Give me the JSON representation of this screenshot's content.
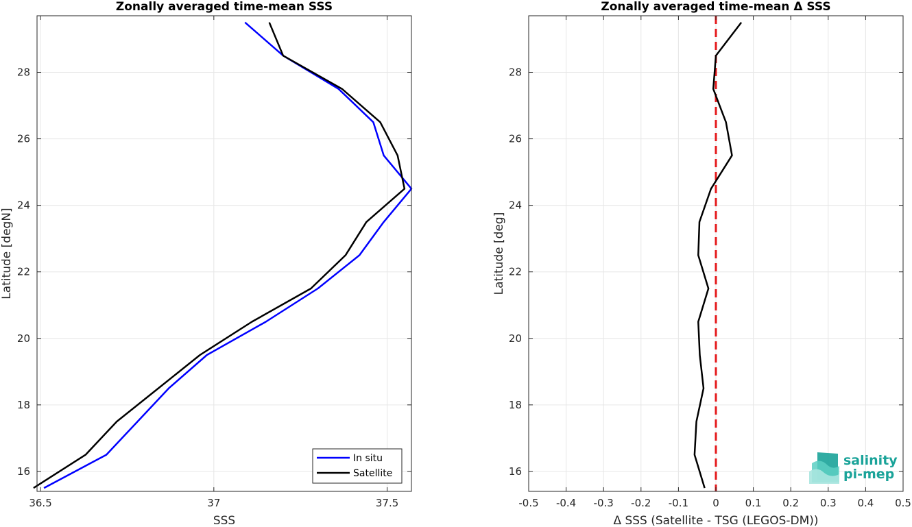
{
  "chart_data": [
    {
      "type": "line",
      "title": "Zonally averaged time-mean SSS",
      "xlabel": "SSS",
      "ylabel": "Latitude [degN]",
      "xlim": [
        36.49,
        37.57
      ],
      "ylim": [
        15.4,
        29.7
      ],
      "xticks": [
        36.5,
        37,
        37.5
      ],
      "xtick_labels": [
        "36.5",
        "37",
        "37.5"
      ],
      "yticks": [
        16,
        18,
        20,
        22,
        24,
        26,
        28
      ],
      "grid": true,
      "legend_position": "bottom-right",
      "y": [
        15.5,
        16.5,
        17.5,
        18.5,
        19.5,
        20.5,
        21.5,
        22.5,
        23.5,
        24.5,
        25.5,
        26.5,
        27.5,
        28.5,
        29.5
      ],
      "series": [
        {
          "name": "In situ",
          "color": "#0000ff",
          "values": [
            36.51,
            36.69,
            36.78,
            36.87,
            36.98,
            37.15,
            37.3,
            37.42,
            37.49,
            37.57,
            37.49,
            37.46,
            37.36,
            37.2,
            37.09
          ]
        },
        {
          "name": "Satellite",
          "color": "#000000",
          "values": [
            36.48,
            36.63,
            36.72,
            36.84,
            36.96,
            37.11,
            37.28,
            37.38,
            37.44,
            37.55,
            37.53,
            37.48,
            37.37,
            37.2,
            37.16
          ]
        }
      ]
    },
    {
      "type": "line",
      "title": "Zonally averaged time-mean Δ SSS",
      "xlabel": "Δ SSS (Satellite - TSG (LEGOS-DM))",
      "ylabel": "Latitude [deg]",
      "xlim": [
        -0.5,
        0.5
      ],
      "ylim": [
        15.4,
        29.7
      ],
      "xticks": [
        -0.5,
        -0.4,
        -0.3,
        -0.2,
        -0.1,
        0,
        0.1,
        0.2,
        0.3,
        0.4,
        0.5
      ],
      "xtick_labels": [
        "-0.5",
        "-0.4",
        "-0.3",
        "-0.2",
        "-0.1",
        "0",
        "0.1",
        "0.2",
        "0.3",
        "0.4",
        "0.5"
      ],
      "yticks": [
        16,
        18,
        20,
        22,
        24,
        26,
        28
      ],
      "grid": true,
      "y": [
        15.5,
        16.5,
        17.5,
        18.5,
        19.5,
        20.5,
        21.5,
        22.5,
        23.5,
        24.5,
        25.5,
        26.5,
        27.5,
        28.5,
        29.5
      ],
      "series": [
        {
          "color": "#000000",
          "values": [
            -0.03,
            -0.057,
            -0.052,
            -0.033,
            -0.043,
            -0.047,
            -0.02,
            -0.047,
            -0.044,
            -0.013,
            0.043,
            0.027,
            -0.007,
            0.0,
            0.068
          ]
        }
      ],
      "reference_line": {
        "x": 0,
        "color": "#e41a1c",
        "style": "dashed"
      }
    }
  ],
  "logo": {
    "line1": "salinity",
    "line2": "pi-mep",
    "color": "#1aa399"
  }
}
